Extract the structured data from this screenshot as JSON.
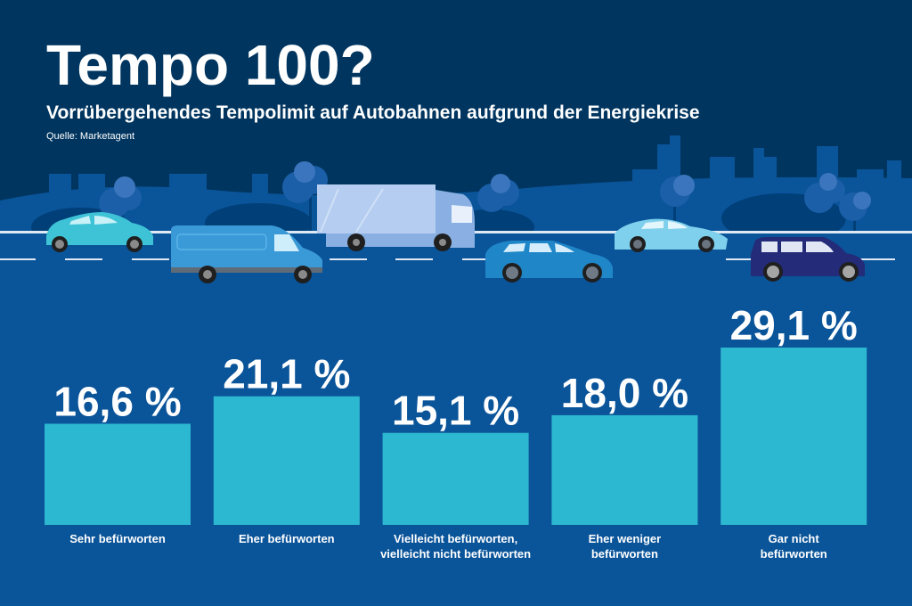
{
  "header": {
    "title": "Tempo 100?",
    "subtitle": "Vorrübergehendes Tempolimit auf Autobahnen aufgrund der Energiekrise",
    "source": "Quelle: Marketagent"
  },
  "colors": {
    "background_top": "#00355f",
    "background_bottom": "#0a5499",
    "skyline": "#0a5499",
    "bar": "#2db8d1",
    "text": "#ffffff"
  },
  "chart_data": {
    "type": "bar",
    "title": "Tempo 100?",
    "subtitle": "Vorrübergehendes Tempolimit auf Autobahnen aufgrund der Energiekrise",
    "categories": [
      "Sehr befürworten",
      "Eher befürworten",
      "Vielleicht befürworten, vielleicht nicht befürworten",
      "Eher weniger befürworten",
      "Gar nicht befürworten"
    ],
    "category_lines": [
      [
        "Sehr befürworten"
      ],
      [
        "Eher befürworten"
      ],
      [
        "Vielleicht befürworten,",
        "vielleicht nicht befürworten"
      ],
      [
        "Eher weniger",
        "befürworten"
      ],
      [
        "Gar nicht",
        "befürworten"
      ]
    ],
    "values": [
      16.6,
      21.1,
      15.1,
      18.0,
      29.1
    ],
    "value_labels": [
      "16,6 %",
      "21,1 %",
      "15,1 %",
      "18,0 %",
      "29,1 %"
    ],
    "unit": "%",
    "xlabel": "",
    "ylabel": "",
    "ylim": [
      0,
      30
    ],
    "grid": false,
    "legend": "none"
  }
}
